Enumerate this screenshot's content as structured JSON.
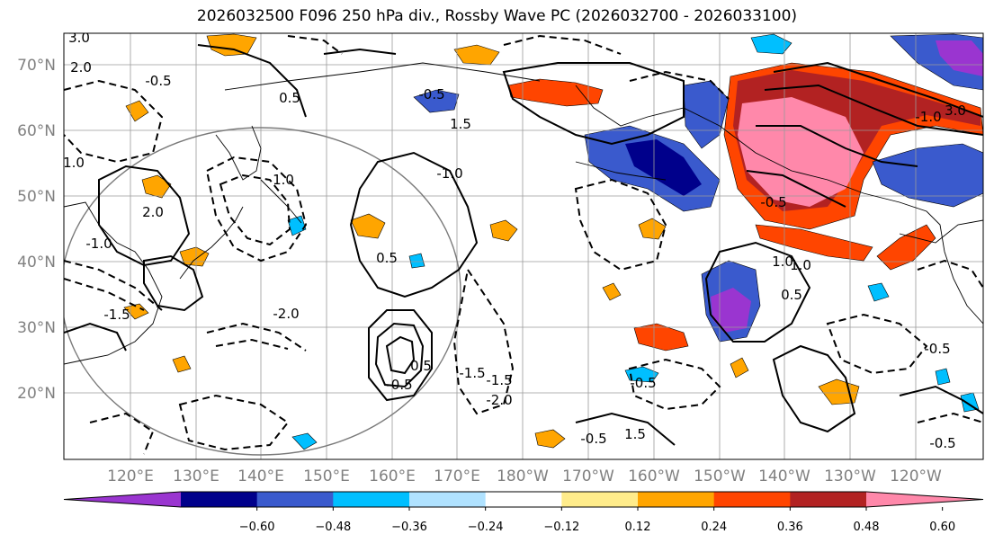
{
  "title": "2026032500 F096 250 hPa div., Rossby Wave PC (2026032700 - 2026033100)",
  "lat_labels": [
    "70°N",
    "60°N",
    "50°N",
    "40°N",
    "30°N",
    "20°N"
  ],
  "lon_labels": [
    "120°E",
    "130°E",
    "140°E",
    "150°E",
    "160°E",
    "170°E",
    "180°W",
    "170°W",
    "160°W",
    "150°W",
    "140°W",
    "130°W",
    "120°W"
  ],
  "colorbar": {
    "ticks": [
      "−0.60",
      "−0.48",
      "−0.36",
      "−0.24",
      "−0.12",
      "0.12",
      "0.24",
      "0.36",
      "0.48",
      "0.60"
    ],
    "colors": [
      "#9a35d0",
      "#00008b",
      "#3a5acd",
      "#00bfff",
      "#b0e2ff",
      "#ffffff",
      "#ffec8b",
      "#ffa500",
      "#ff4500",
      "#b22222",
      "#ff88aa"
    ]
  },
  "contour_labels": [
    "3.0",
    "2.0",
    "1.0",
    "0.5",
    "-0.5",
    "-1.0",
    "-1.5",
    "-2.0",
    "2.0",
    "1.0",
    "0.5",
    "-0.5",
    "1.5",
    "-1.0",
    "0.5",
    "-0.5",
    "-1.5",
    "3.0",
    "-1.0",
    "1.0",
    "-0.5",
    "-0.5",
    "-0.5",
    "1.5",
    "-1.5",
    "0.5",
    "-2.0",
    "-0.5",
    "1.0",
    "-0.5"
  ]
}
